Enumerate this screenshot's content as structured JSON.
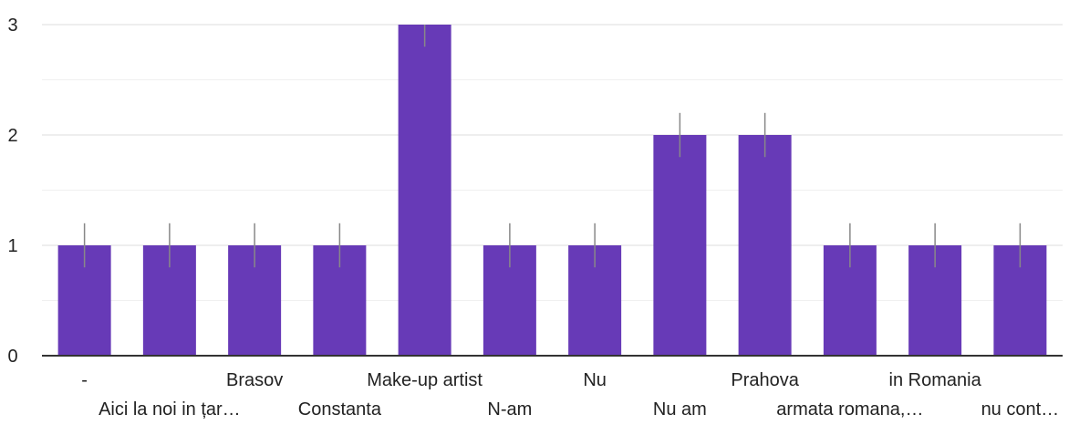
{
  "chart_data": {
    "type": "bar",
    "categories": [
      "-",
      "Aici la noi in țar…",
      "Brasov",
      "Constanta",
      "Make-up artist",
      "N-am",
      "Nu",
      "Nu am",
      "Prahova",
      "armata romana,…",
      "in Romania",
      "nu cont…"
    ],
    "values": [
      1,
      1,
      1,
      1,
      3,
      1,
      1,
      2,
      2,
      1,
      1,
      1
    ],
    "ylim": [
      0,
      3
    ],
    "yticks": [
      0,
      1,
      2,
      3
    ],
    "grid": true,
    "colors": {
      "bar": "#673ab7",
      "axis": "#333333",
      "grid_major": "#dddddd",
      "grid_minor": "#f0f0f0",
      "whisker": "#888888"
    }
  }
}
